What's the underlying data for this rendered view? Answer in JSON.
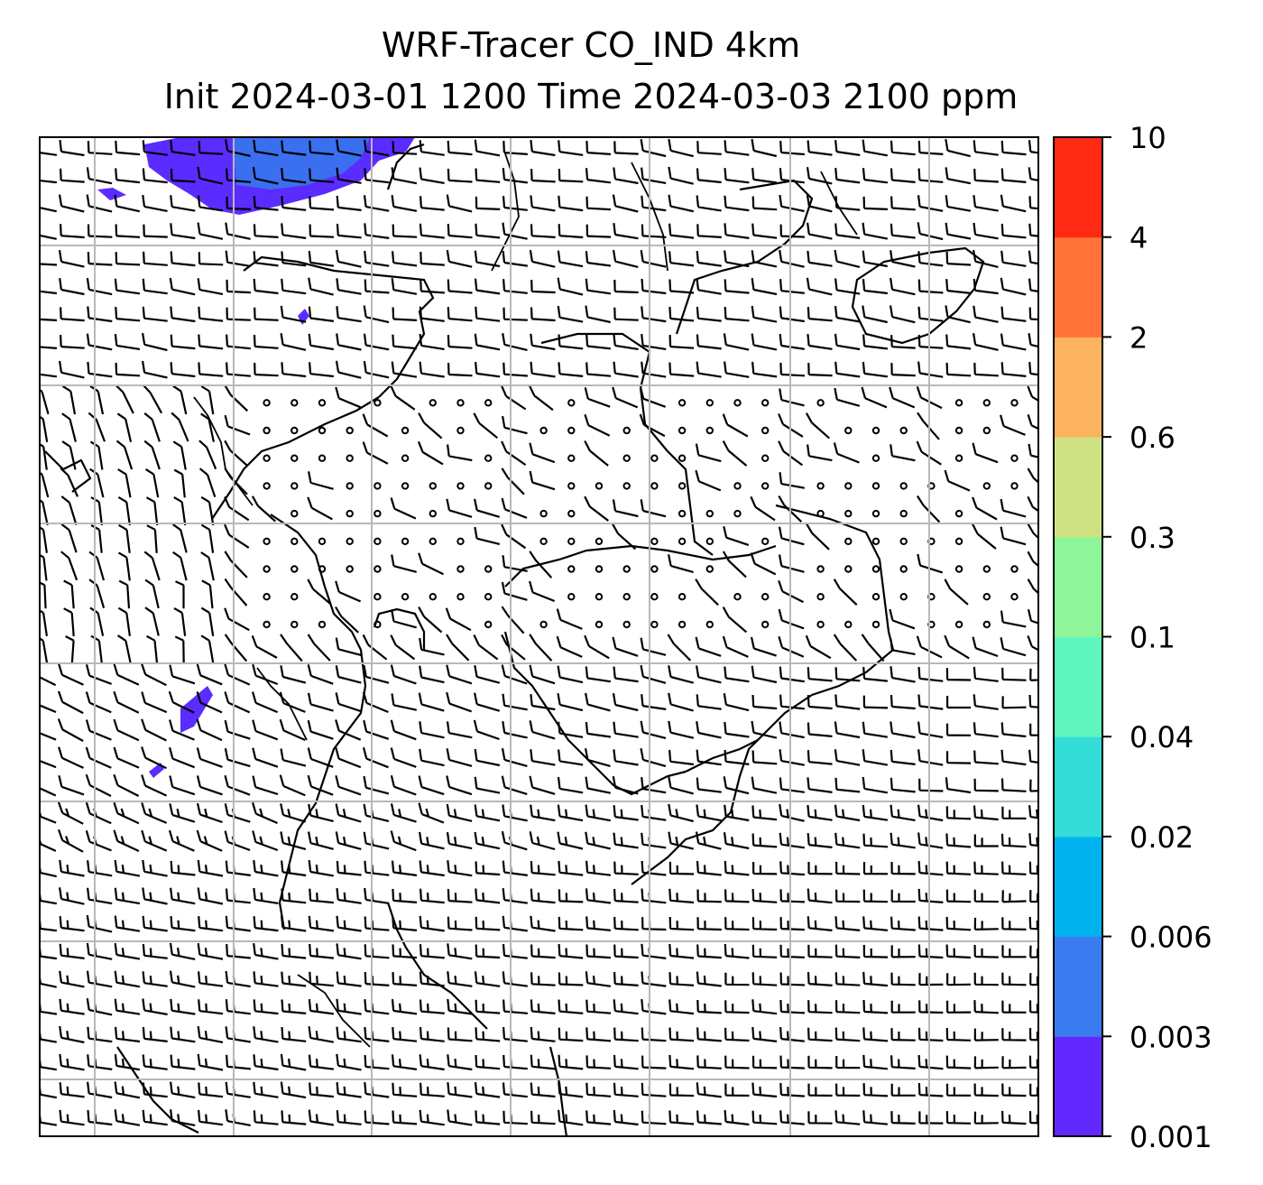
{
  "title": {
    "line1": "WRF-Tracer CO_IND 4km",
    "line2": "Init 2024-03-01 1200 Time 2024-03-03 2100 ppm"
  },
  "map": {
    "field": "CO_IND tracer",
    "units": "ppm",
    "overlays": [
      "wind barbs",
      "coastlines",
      "country borders",
      "lat/lon gridlines"
    ],
    "plume_colors": [
      "#5b2cff",
      "#3a6ff0"
    ]
  },
  "colorbar": {
    "tick_labels": [
      "0.001",
      "0.003",
      "0.006",
      "0.02",
      "0.04",
      "0.1",
      "0.3",
      "0.6",
      "2",
      "4",
      "10"
    ],
    "colors": [
      "#6229ff",
      "#3a7bf0",
      "#00b3ee",
      "#33dcd6",
      "#5ff5bf",
      "#8ef59a",
      "#cfe283",
      "#fcb360",
      "#ff7238",
      "#ff2a14"
    ]
  }
}
